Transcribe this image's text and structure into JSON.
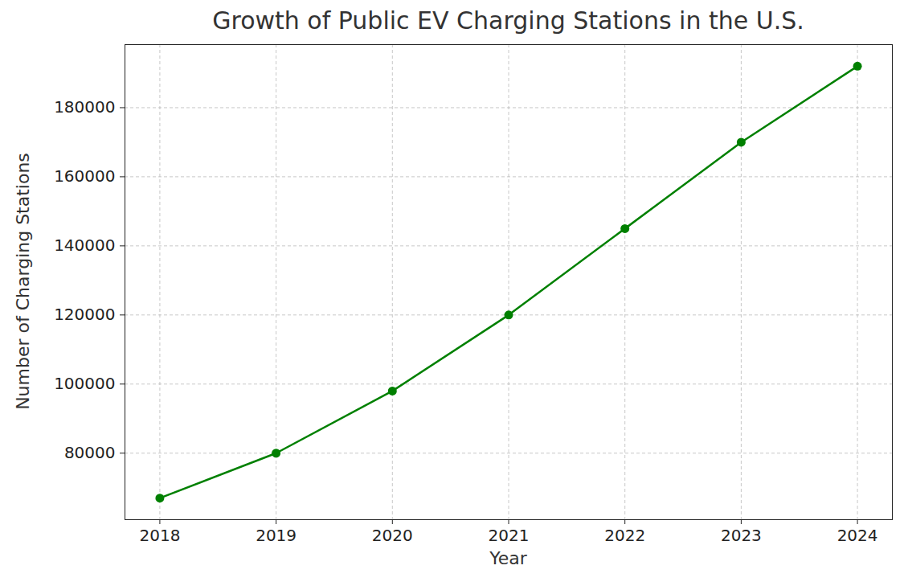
{
  "chart_data": {
    "type": "line",
    "title": "Growth of Public EV Charging Stations in the U.S.",
    "x_label": "Year",
    "y_label": "Number of Charging Stations",
    "x": [
      2018,
      2019,
      2020,
      2021,
      2022,
      2023,
      2024
    ],
    "values": [
      67000,
      80000,
      98000,
      120000,
      145000,
      170000,
      192000
    ],
    "color": "#008000",
    "marker": "circle",
    "line_style": "solid",
    "xlim": [
      2017.7,
      2024.3
    ],
    "xticks": [
      2018,
      2019,
      2020,
      2021,
      2022,
      2023,
      2024
    ],
    "ylim": [
      60750,
      198250
    ],
    "yticks": [
      80000,
      100000,
      120000,
      140000,
      160000,
      180000
    ],
    "grid": true
  }
}
